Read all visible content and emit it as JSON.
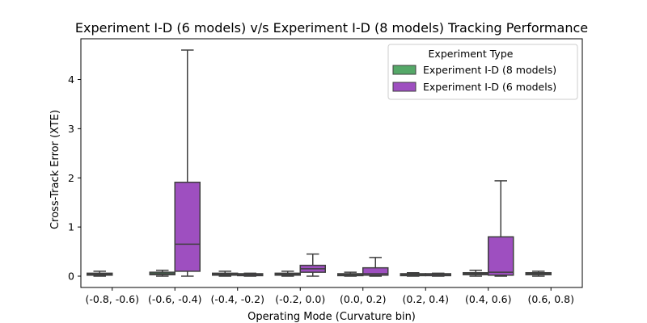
{
  "chart_data": {
    "type": "box",
    "title": "Experiment I-D (6 models) v/s Experiment I-D (8 models) Tracking Performance",
    "xlabel": "Operating Mode (Curvature bin)",
    "ylabel": "Cross-Track Error (XTE)",
    "ylim": [
      -0.23,
      4.83
    ],
    "yticks": [
      0,
      1,
      2,
      3,
      4
    ],
    "categories": [
      "(-0.8, -0.6)",
      "(-0.6, -0.4)",
      "(-0.4, -0.2)",
      "(-0.2, 0.0)",
      "(0.0, 0.2)",
      "(0.2, 0.4)",
      "(0.4, 0.6)",
      "(0.6, 0.8)"
    ],
    "legend": {
      "title": "Experiment Type",
      "position": "upper right"
    },
    "series": [
      {
        "name": "Experiment I-D (8 models)",
        "color": "#55a868",
        "boxes": [
          {
            "min": 0.0,
            "q1": 0.02,
            "median": 0.04,
            "q3": 0.06,
            "max": 0.1
          },
          {
            "min": 0.0,
            "q1": 0.03,
            "median": 0.05,
            "q3": 0.08,
            "max": 0.12
          },
          {
            "min": 0.0,
            "q1": 0.02,
            "median": 0.04,
            "q3": 0.06,
            "max": 0.1
          },
          {
            "min": 0.0,
            "q1": 0.02,
            "median": 0.04,
            "q3": 0.06,
            "max": 0.1
          },
          {
            "min": 0.0,
            "q1": 0.01,
            "median": 0.03,
            "q3": 0.05,
            "max": 0.08
          },
          {
            "min": 0.0,
            "q1": 0.01,
            "median": 0.03,
            "q3": 0.05,
            "max": 0.07
          },
          {
            "min": 0.0,
            "q1": 0.03,
            "median": 0.05,
            "q3": 0.07,
            "max": 0.12
          },
          {
            "min": 0.0,
            "q1": 0.03,
            "median": 0.05,
            "q3": 0.07,
            "max": 0.1
          }
        ]
      },
      {
        "name": "Experiment I-D (6 models)",
        "color": "#9e4fc0",
        "boxes": [
          null,
          {
            "min": 0.0,
            "q1": 0.1,
            "median": 0.65,
            "q3": 1.91,
            "max": 4.6
          },
          {
            "min": 0.0,
            "q1": 0.01,
            "median": 0.03,
            "q3": 0.05,
            "max": 0.06
          },
          {
            "min": 0.0,
            "q1": 0.08,
            "median": 0.15,
            "q3": 0.22,
            "max": 0.45
          },
          {
            "min": 0.0,
            "q1": 0.02,
            "median": 0.05,
            "q3": 0.17,
            "max": 0.38
          },
          {
            "min": 0.0,
            "q1": 0.01,
            "median": 0.03,
            "q3": 0.05,
            "max": 0.06
          },
          {
            "min": 0.0,
            "q1": 0.02,
            "median": 0.08,
            "q3": 0.8,
            "max": 1.94
          },
          null
        ]
      }
    ]
  }
}
